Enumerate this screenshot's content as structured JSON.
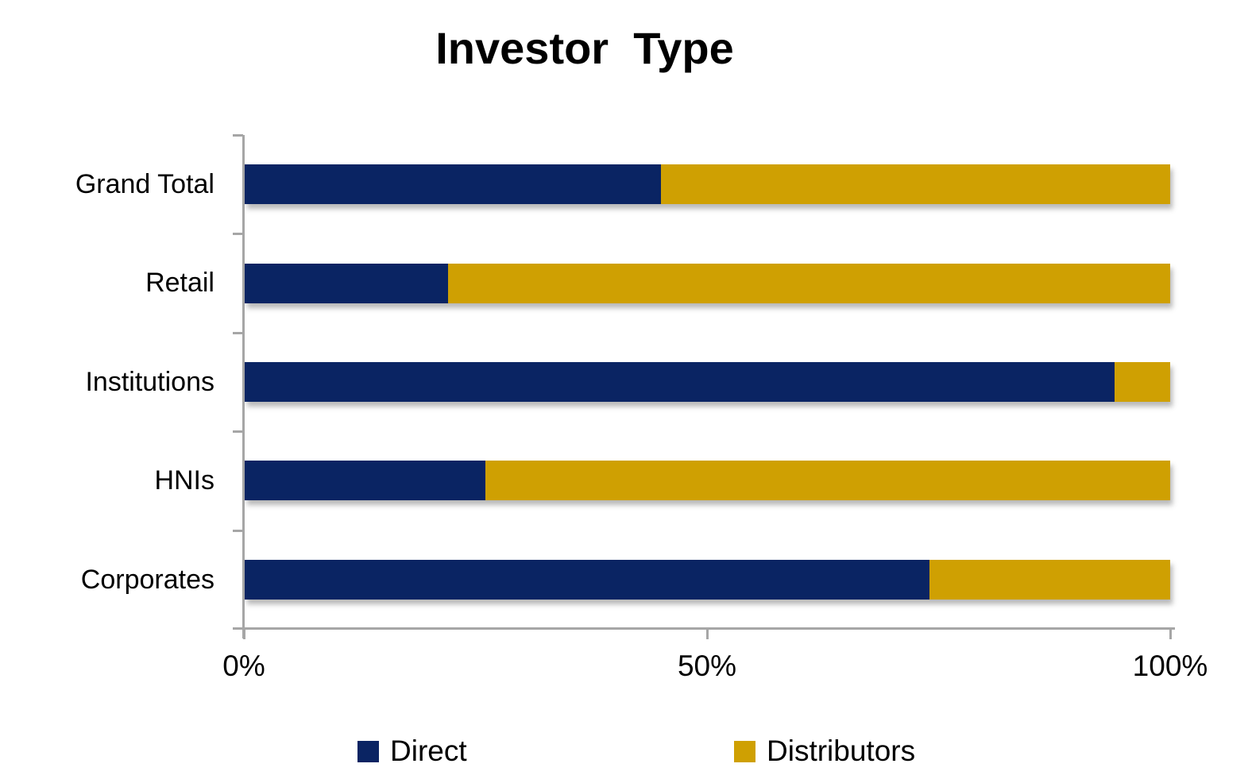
{
  "title": "Investor  Type",
  "chart_data": {
    "type": "bar",
    "orientation": "horizontal",
    "stacked": true,
    "unit": "percent",
    "title": "Investor  Type",
    "categories": [
      "Grand Total",
      "Retail",
      "Institutions",
      "HNIs",
      "Corporates"
    ],
    "series": [
      {
        "name": "Direct",
        "color": "#0a2463",
        "values": [
          45,
          22,
          94,
          26,
          74
        ]
      },
      {
        "name": "Distributors",
        "color": "#cfa002",
        "values": [
          55,
          78,
          6,
          74,
          26
        ]
      }
    ],
    "x_axis": {
      "range": [
        0,
        100
      ],
      "ticks": [
        "0%",
        "50%",
        "100%"
      ],
      "tick_positions": [
        0,
        50,
        100
      ]
    },
    "y_axis": {
      "label": ""
    },
    "grid": false,
    "legend_position": "bottom"
  },
  "legend": {
    "items": [
      {
        "label": "Direct",
        "color": "#0a2463"
      },
      {
        "label": "Distributors",
        "color": "#cfa002"
      }
    ]
  },
  "colors": {
    "axis": "#a6a6a6",
    "text": "#000000",
    "background": "#ffffff",
    "direct": "#0a2463",
    "distributors": "#cfa002"
  }
}
